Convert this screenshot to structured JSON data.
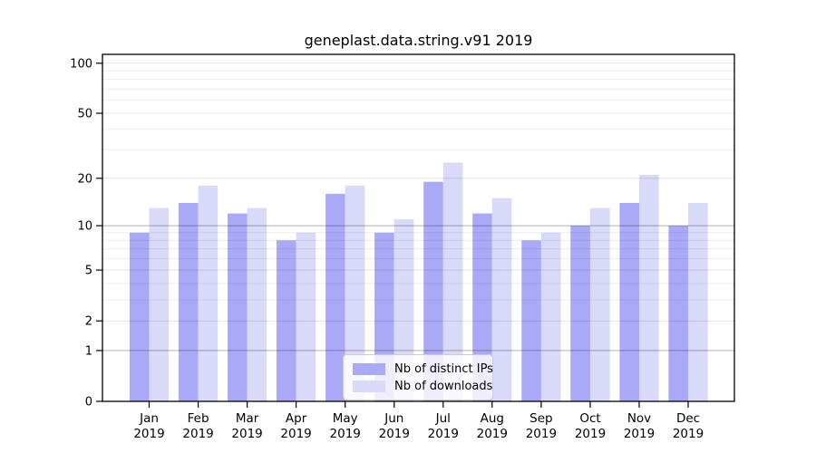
{
  "chart_data": {
    "type": "bar",
    "title": "geneplast.data.string.v91 2019",
    "categories": [
      "Jan 2019",
      "Feb 2019",
      "Mar 2019",
      "Apr 2019",
      "May 2019",
      "Jun 2019",
      "Jul 2019",
      "Aug 2019",
      "Sep 2019",
      "Oct 2019",
      "Nov 2019",
      "Dec 2019"
    ],
    "series": [
      {
        "name": "Nb of distinct IPs",
        "color": "#a9a9f7",
        "values": [
          9,
          14,
          12,
          8,
          16,
          9,
          19,
          12,
          8,
          10,
          14,
          10
        ]
      },
      {
        "name": "Nb of downloads",
        "color": "#d9d9fa",
        "values": [
          13,
          18,
          13,
          9,
          18,
          11,
          25,
          15,
          9,
          13,
          21,
          14
        ]
      }
    ],
    "xlabel": "",
    "ylabel": "",
    "yscale": "log1p",
    "ylim": [
      0,
      113
    ],
    "y_ticks": [
      0,
      1,
      2,
      5,
      10,
      20,
      50,
      100
    ],
    "y_major_gridlines": [
      1,
      10
    ],
    "y_light_gridlines": [
      2,
      5,
      20,
      50,
      100
    ],
    "y_minor_gridlines": [
      3,
      4,
      6,
      7,
      8,
      9,
      30,
      40,
      60,
      70,
      80,
      90
    ],
    "grid": true,
    "legend_position": "lower center",
    "bar_group": {
      "bars_per_group": 2,
      "group_width_fraction": 0.8
    }
  },
  "colors": {
    "background": "#ffffff",
    "axis": "#000000",
    "grid_major": "#b0b0b0",
    "grid_minor": "#ececec",
    "legend_border": "#cccccc",
    "series_ips": "#a9a9f7",
    "series_downloads": "#d9d9fa"
  }
}
